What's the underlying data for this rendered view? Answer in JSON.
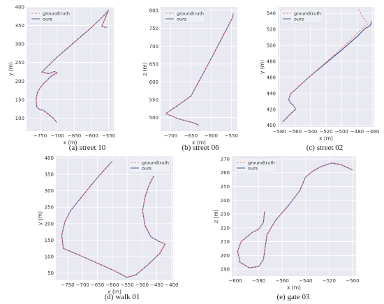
{
  "figure": {
    "captions": [
      "(a) street 10",
      "(b) street 06",
      "(c) street 02",
      "(d) walk 01",
      "(e) gate 03"
    ]
  },
  "colors": {
    "panel_bg": "#e9e9f1",
    "grid": "#ffffff",
    "groundtruth": "#f08080",
    "ours": "#4a5a9a",
    "text": "#333333"
  },
  "chart_data": [
    {
      "type": "line",
      "xlabel": "x (m)",
      "ylabel": "y (m)",
      "xlim": [
        -790,
        -535
      ],
      "ylim": [
        65,
        400
      ],
      "xticks": [
        -750,
        -700,
        -650,
        -600,
        -550
      ],
      "yticks": [
        100,
        150,
        200,
        250,
        300,
        350,
        400
      ],
      "grid": true,
      "legend": "top-left",
      "series": [
        {
          "name": "groundtruth",
          "style": "dashed",
          "x": [
            -701,
            -712,
            -728,
            -742,
            -750,
            -760,
            -762,
            -758,
            -748,
            -738,
            -730,
            -722,
            -716,
            -710,
            -704,
            -700,
            -704,
            -710,
            -718,
            -726,
            -735,
            -742,
            -746,
            -700,
            -650,
            -600,
            -575,
            -560,
            -550,
            -570,
            -560,
            -554
          ],
          "y": [
            88,
            100,
            112,
            122,
            122,
            130,
            150,
            170,
            185,
            195,
            202,
            210,
            215,
            218,
            220,
            222,
            224,
            226,
            222,
            220,
            222,
            224,
            224,
            265,
            305,
            345,
            367,
            380,
            392,
            348,
            345,
            345
          ]
        },
        {
          "name": "ours",
          "style": "solid",
          "x": [
            -701,
            -712,
            -728,
            -742,
            -750,
            -760,
            -762,
            -758,
            -748,
            -738,
            -730,
            -722,
            -716,
            -710,
            -704,
            -700,
            -704,
            -710,
            -718,
            -726,
            -735,
            -742,
            -746,
            -700,
            -650,
            -600,
            -575,
            -560,
            -550,
            -570,
            -560,
            -554
          ],
          "y": [
            88,
            100,
            112,
            122,
            122,
            130,
            150,
            170,
            185,
            195,
            202,
            210,
            215,
            218,
            220,
            222,
            224,
            226,
            222,
            220,
            222,
            224,
            224,
            265,
            305,
            345,
            367,
            380,
            392,
            348,
            345,
            345
          ]
        }
      ]
    },
    {
      "type": "line",
      "xlabel": "x (m)",
      "ylabel": "z (m)",
      "xlim": [
        -725,
        -535
      ],
      "ylim": [
        462,
        810
      ],
      "xticks": [
        -700,
        -650,
        -600,
        -550
      ],
      "yticks": [
        500,
        550,
        600,
        650,
        700,
        750,
        800
      ],
      "grid": true,
      "legend": "top-left",
      "series": [
        {
          "name": "groundtruth",
          "style": "dashed",
          "x": [
            -545,
            -547,
            -600,
            -650,
            -700,
            -712,
            -680,
            -640,
            -630
          ],
          "y": [
            792,
            780,
            665,
            560,
            520,
            511,
            496,
            484,
            478
          ]
        },
        {
          "name": "ours",
          "style": "solid",
          "x": [
            -545,
            -547,
            -600,
            -650,
            -700,
            -712,
            -680,
            -640,
            -630
          ],
          "y": [
            792,
            780,
            665,
            560,
            520,
            511,
            496,
            484,
            478
          ]
        }
      ]
    },
    {
      "type": "line",
      "xlabel": "x (m)",
      "ylabel": "y (m)",
      "xlim": [
        -582,
        -458
      ],
      "ylim": [
        398,
        548
      ],
      "xticks": [
        -580,
        -560,
        -540,
        -520,
        -500,
        -480,
        -460
      ],
      "yticks": [
        400,
        420,
        440,
        460,
        480,
        500,
        520,
        540
      ],
      "grid": true,
      "legend": "top-left",
      "series": [
        {
          "name": "groundtruth",
          "style": "dashed",
          "x": [
            -576,
            -565,
            -559,
            -562,
            -566,
            -568,
            -566,
            -540,
            -500,
            -480,
            -470,
            -466,
            -472,
            -478
          ],
          "y": [
            404,
            415,
            420,
            425,
            428,
            432,
            439,
            462,
            496,
            515,
            524,
            527,
            534,
            545
          ]
        },
        {
          "name": "ours",
          "style": "solid",
          "x": [
            -576,
            -565,
            -559,
            -562,
            -566,
            -568,
            -566,
            -540,
            -500,
            -480,
            -470,
            -464,
            -462,
            -462
          ],
          "y": [
            404,
            415,
            420,
            425,
            428,
            432,
            439,
            462,
            494,
            511,
            521,
            524,
            527,
            530
          ]
        }
      ]
    },
    {
      "type": "line",
      "xlabel": "x (m)",
      "ylabel": "y (m)",
      "xlim": [
        -790,
        -395
      ],
      "ylim": [
        28,
        405
      ],
      "xticks": [
        -750,
        -700,
        -650,
        -600,
        -550,
        -500,
        -450,
        -400
      ],
      "yticks": [
        50,
        100,
        150,
        200,
        250,
        300,
        350,
        400
      ],
      "grid": true,
      "legend": "top-right",
      "series": [
        {
          "name": "groundtruth",
          "style": "dashed",
          "x": [
            -600,
            -650,
            -700,
            -740,
            -760,
            -770,
            -765,
            -700,
            -600,
            -550,
            -520,
            -480,
            -440,
            -422,
            -440,
            -470,
            -490,
            -498,
            -490,
            -475,
            -460
          ],
          "y": [
            390,
            340,
            285,
            240,
            205,
            165,
            125,
            100,
            60,
            37,
            45,
            75,
            110,
            138,
            145,
            160,
            195,
            240,
            280,
            320,
            345
          ]
        },
        {
          "name": "ours",
          "style": "solid",
          "x": [
            -600,
            -650,
            -700,
            -740,
            -760,
            -770,
            -765,
            -700,
            -600,
            -550,
            -520,
            -480,
            -440,
            -422,
            -440,
            -470,
            -490,
            -498,
            -490,
            -475,
            -460
          ],
          "y": [
            390,
            340,
            285,
            240,
            205,
            165,
            125,
            100,
            60,
            37,
            45,
            75,
            110,
            138,
            145,
            160,
            195,
            240,
            280,
            320,
            345
          ]
        }
      ]
    },
    {
      "type": "line",
      "xlabel": "x (m)",
      "ylabel": "z (m)",
      "xlim": [
        -603,
        -497
      ],
      "ylim": [
        185,
        272
      ],
      "xticks": [
        -600,
        -580,
        -560,
        -540,
        -520,
        -500
      ],
      "yticks": [
        190,
        200,
        210,
        220,
        230,
        240,
        250,
        260,
        270
      ],
      "grid": true,
      "legend": "top-left",
      "series": [
        {
          "name": "groundtruth",
          "style": "dashed",
          "x": [
            -575,
            -576,
            -580,
            -585,
            -595,
            -598,
            -596,
            -588,
            -580,
            -576,
            -573,
            -566,
            -555,
            -545,
            -540,
            -534,
            -528,
            -522,
            -518,
            -510,
            -500
          ],
          "y": [
            232,
            224,
            219,
            217,
            210,
            203,
            195,
            191,
            192,
            197,
            215,
            225,
            236,
            247,
            257,
            261,
            264,
            266,
            267,
            266,
            262
          ]
        },
        {
          "name": "ours",
          "style": "solid",
          "x": [
            -575,
            -576,
            -580,
            -585,
            -595,
            -598,
            -596,
            -588,
            -580,
            -576,
            -573,
            -566,
            -555,
            -545,
            -540,
            -534,
            -528,
            -522,
            -518,
            -510,
            -500
          ],
          "y": [
            232,
            224,
            219,
            217,
            210,
            203,
            195,
            191,
            192,
            197,
            215,
            225,
            236,
            247,
            257,
            261,
            264,
            266,
            267,
            266,
            262
          ]
        }
      ]
    }
  ]
}
